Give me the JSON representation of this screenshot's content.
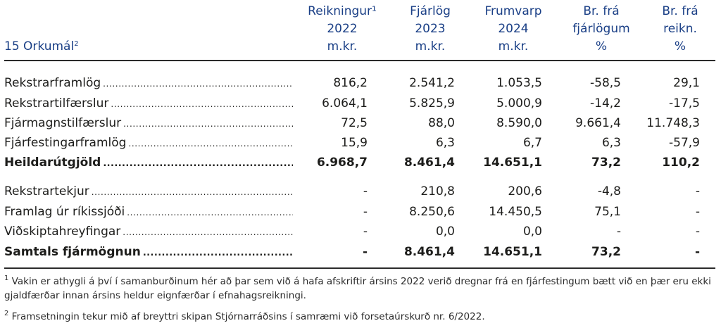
{
  "header": {
    "section_title": "15 Orkumál",
    "section_title_sup": "2",
    "columns": [
      {
        "line1": "Reikningur¹",
        "line2": "2022",
        "line3": "m.kr."
      },
      {
        "line1": "Fjárlög",
        "line2": "2023",
        "line3": "m.kr."
      },
      {
        "line1": "Frumvarp",
        "line2": "2024",
        "line3": "m.kr."
      },
      {
        "line1": "Br. frá",
        "line2": "fjárlögum",
        "line3": "%"
      },
      {
        "line1": "Br. frá",
        "line2": "reikn.",
        "line3": "%"
      }
    ]
  },
  "expenses": [
    {
      "label": "Rekstrarframlög",
      "values": [
        "816,2",
        "2.541,2",
        "1.053,5",
        "-58,5",
        "29,1"
      ]
    },
    {
      "label": "Rekstrartilfærslur",
      "values": [
        "6.064,1",
        "5.825,9",
        "5.000,9",
        "-14,2",
        "-17,5"
      ]
    },
    {
      "label": "Fjármagnstilfærslur",
      "values": [
        "72,5",
        "88,0",
        "8.590,0",
        "9.661,4",
        "11.748,3"
      ]
    },
    {
      "label": "Fjárfestingarframlög",
      "values": [
        "15,9",
        "6,3",
        "6,7",
        "6,3",
        "-57,9"
      ]
    },
    {
      "label": "Heildarútgjöld",
      "values": [
        "6.968,7",
        "8.461,4",
        "14.651,1",
        "73,2",
        "110,2"
      ]
    }
  ],
  "funding": [
    {
      "label": "Rekstrartekjur",
      "values": [
        "-",
        "210,8",
        "200,6",
        "-4,8",
        "-"
      ]
    },
    {
      "label": "Framlag úr ríkissjóði",
      "values": [
        "-",
        "8.250,6",
        "14.450,5",
        "75,1",
        "-"
      ]
    },
    {
      "label": "Viðskiptahreyfingar",
      "values": [
        "-",
        "0,0",
        "0,0",
        "-",
        "-"
      ]
    },
    {
      "label": "Samtals fjármögnun",
      "values": [
        "-",
        "8.461,4",
        "14.651,1",
        "73,2",
        "-"
      ]
    }
  ],
  "footnotes": [
    {
      "mark": "1",
      "text": "Vakin er athygli á því í samanburðinum hér að þar sem við á hafa afskriftir ársins 2022 verið dregnar frá en fjárfestingum bætt við en þær eru ekki gjaldfærðar innan ársins heldur eignfærðar í efnahagsreikningi."
    },
    {
      "mark": "2",
      "text": "Framsetningin tekur mið af breyttri skipan Stjórnarráðsins í samræmi við forsetaúrskurð nr. 6/2022."
    }
  ]
}
